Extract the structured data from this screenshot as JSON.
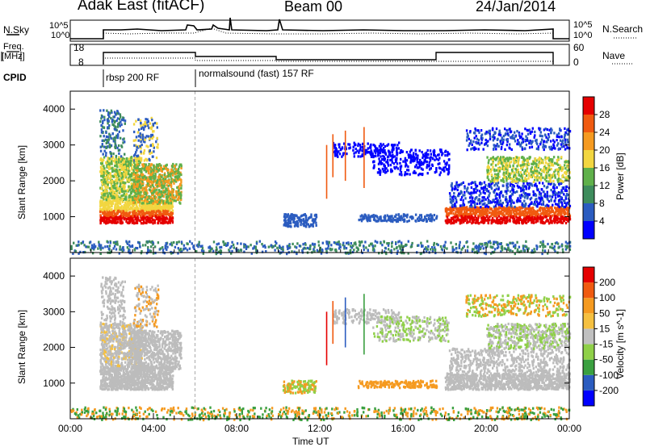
{
  "header": {
    "station": "Adak East (fitACF)",
    "beam": "Beam 00",
    "date": "24/Jan/2014"
  },
  "panels": {
    "nsky": {
      "label": "N.Sky",
      "ticks": [
        "10^5",
        "10^0"
      ],
      "right_label": "N.Search",
      "right_ticks": [
        "10^5",
        "10^0"
      ]
    },
    "freq": {
      "label_1": "Freq.",
      "label_2": "[MHz]",
      "ticks": [
        "18",
        "8"
      ],
      "right_label": "Nave",
      "right_ticks": [
        "60",
        "0"
      ]
    },
    "cpid": {
      "label": "CPID",
      "modes": [
        "rbsp 200 RF",
        "normalsound (fast) 157 RF"
      ]
    }
  },
  "colors": {
    "power_scale": [
      "#0000ff",
      "#2b5cc0",
      "#3e8c5c",
      "#5fb04a",
      "#f2d640",
      "#f59a20",
      "#f05a10",
      "#e50000"
    ],
    "velocity_scale": [
      "#e50000",
      "#f05a10",
      "#f59a20",
      "#f5c040",
      "#c0c0c0",
      "#8fd048",
      "#3aa040",
      "#2b5cc0",
      "#0000ff"
    ],
    "ground_scatter": "#bcbcbc"
  },
  "chart_data": [
    {
      "type": "heatmap",
      "name": "power",
      "ylabel": "Slant Range [km]",
      "yticks": [
        1000,
        2000,
        3000,
        4000
      ],
      "ylim": [
        0,
        4500
      ],
      "colorbar_label": "Power [dB]",
      "colorbar_ticks": [
        4,
        8,
        12,
        16,
        20,
        24,
        28
      ],
      "colorbar_range": [
        0,
        32
      ]
    },
    {
      "type": "heatmap",
      "name": "velocity",
      "ylabel": "Slant Range [km]",
      "yticks": [
        1000,
        2000,
        3000,
        4000
      ],
      "ylim": [
        0,
        4500
      ],
      "colorbar_label": "Velocity [m s^-1]",
      "colorbar_ticks": [
        200,
        100,
        50,
        15,
        -15,
        -50,
        -100,
        -200
      ],
      "xlabel": "Time UT",
      "xticks": [
        "00:00",
        "04:00",
        "08:00",
        "12:00",
        "16:00",
        "20:00",
        "00:00"
      ],
      "xlim_hours": [
        0,
        24
      ]
    }
  ]
}
